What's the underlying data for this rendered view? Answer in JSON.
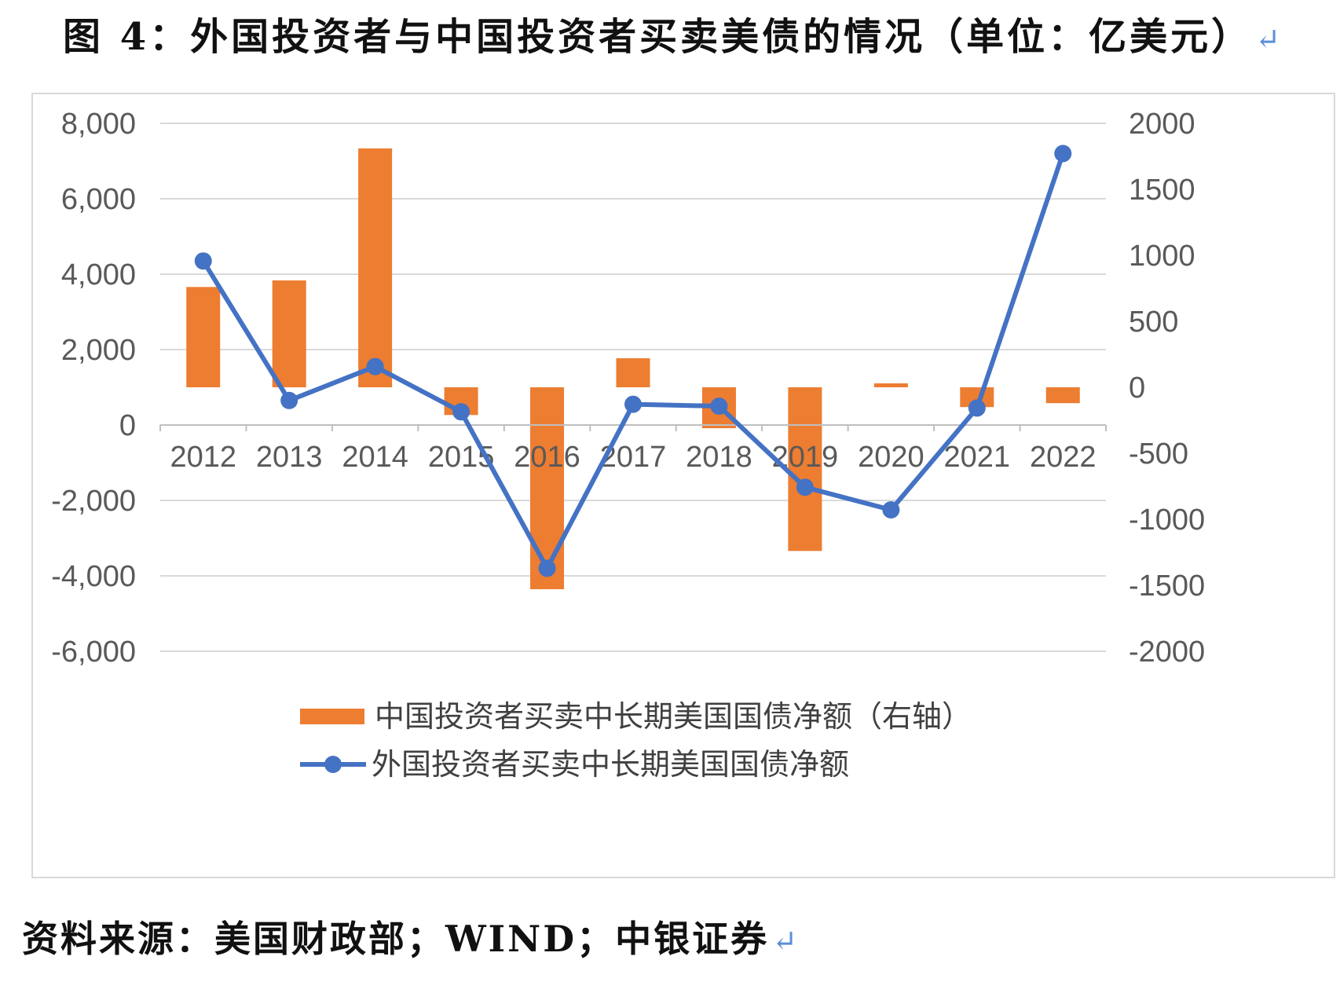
{
  "figure": {
    "title": "图 4：外国投资者与中国投资者买卖美债的情况（单位：亿美元）",
    "title_mark": "↵",
    "source": "资料来源：美国财政部；WIND；中银证券",
    "source_mark": "↵"
  },
  "chart_data": {
    "type": "bar+line",
    "categories": [
      "2012",
      "2013",
      "2014",
      "2015",
      "2016",
      "2017",
      "2018",
      "2019",
      "2020",
      "2021",
      "2022"
    ],
    "left_axis": {
      "ylim": [
        -6000,
        8000
      ],
      "ticks": [
        8000,
        6000,
        4000,
        2000,
        0,
        -2000,
        -4000,
        -6000
      ],
      "tick_labels": [
        "8,000",
        "6,000",
        "4,000",
        "2,000",
        "0",
        "-2,000",
        "-4,000",
        "-6,000"
      ]
    },
    "right_axis": {
      "ylim": [
        -2000,
        2000
      ],
      "ticks": [
        2000,
        1500,
        1000,
        500,
        0,
        -500,
        -1000,
        -1500,
        -2000
      ],
      "tick_labels": [
        "2000",
        "1500",
        "1000",
        "500",
        "0",
        "-500",
        "-1000",
        "-1500",
        "-2000"
      ]
    },
    "series": [
      {
        "name": "中国投资者买卖中长期美国国债净额（右轴）",
        "type": "bar",
        "axis": "right",
        "color": "#ED7D31",
        "values": [
          760,
          810,
          1810,
          -210,
          -1530,
          220,
          -310,
          -1240,
          30,
          -150,
          -120
        ]
      },
      {
        "name": "外国投资者买卖中长期美国国债净额",
        "type": "line",
        "axis": "left",
        "color": "#4472C4",
        "values": [
          4350,
          650,
          1550,
          350,
          -3800,
          550,
          500,
          -1650,
          -2250,
          450,
          7200
        ]
      }
    ],
    "grid": true,
    "legend_position": "bottom"
  },
  "colors": {
    "bar": "#ED7D31",
    "line": "#4472C4",
    "grid": "#d9d9d9",
    "axis": "#bfbfbf",
    "tick_text": "#595959"
  }
}
